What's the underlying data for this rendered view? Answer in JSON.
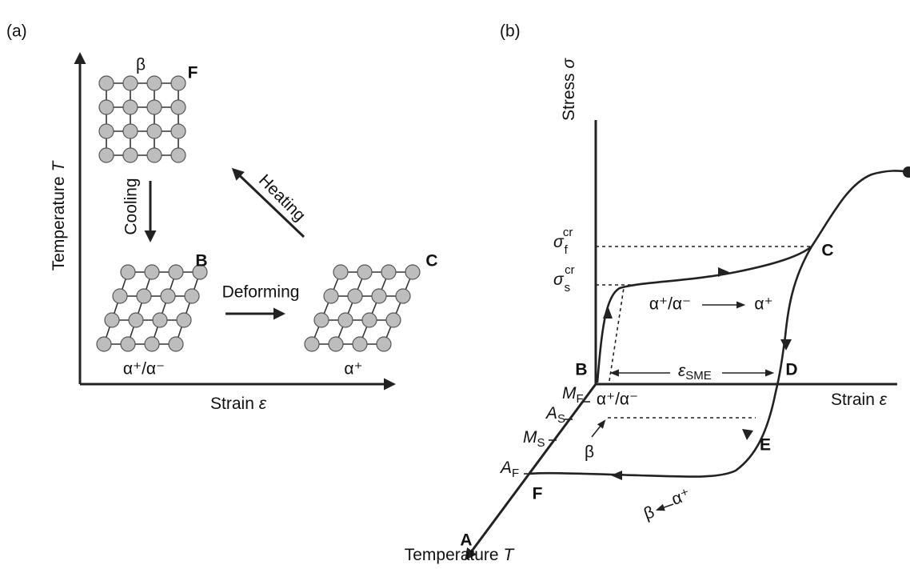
{
  "panel_a": {
    "label": "(a)",
    "y_axis": {
      "text": "Temperature ",
      "var": "T"
    },
    "x_axis": {
      "text": "Strain ",
      "var": "ε"
    },
    "states": [
      {
        "phase": "β",
        "point": "F"
      },
      {
        "phase": "α⁺/α⁻",
        "point": "B"
      },
      {
        "phase": "α⁺",
        "point": "C"
      }
    ],
    "processes": [
      "Cooling",
      "Heating",
      "Deforming"
    ]
  },
  "panel_b": {
    "label": "(b)",
    "y_axis": {
      "text": "Stress ",
      "var": "σ"
    },
    "x_axis": {
      "text": "Strain ",
      "var": "ε"
    },
    "t_axis": {
      "text": "Temperature ",
      "var": "T"
    },
    "stresses": [
      {
        "base": "σ",
        "sub": "f",
        "sup": "cr"
      },
      {
        "base": "σ",
        "sub": "s",
        "sup": "cr"
      }
    ],
    "temperatures": [
      {
        "base": "M",
        "sub": "F"
      },
      {
        "base": "A",
        "sub": "S"
      },
      {
        "base": "M",
        "sub": "S"
      },
      {
        "base": "A",
        "sub": "F"
      }
    ],
    "strain": {
      "base": "ε",
      "sub": "SME"
    },
    "points": [
      "A",
      "B",
      "C",
      "D",
      "E",
      "F"
    ],
    "transitions": [
      {
        "from": "α⁺/α⁻",
        "to": "α⁺"
      },
      {
        "from": "α⁺",
        "to": "β"
      }
    ],
    "phases_at_origin": [
      "α⁺/α⁻",
      "β"
    ]
  }
}
